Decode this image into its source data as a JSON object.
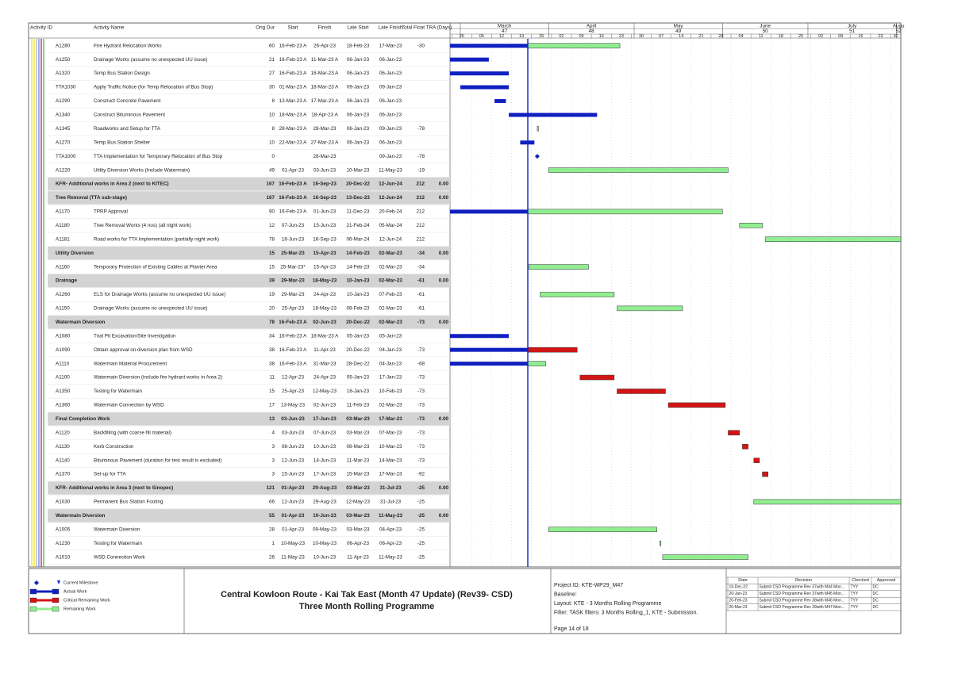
{
  "header": {
    "columns": [
      "Activity ID",
      "Activity Name",
      "Orig Dur",
      "Start",
      "Finish",
      "Late Start",
      "Late Finish",
      "Total Float",
      "TRA (Days)"
    ],
    "months": [
      "March",
      "April",
      "May",
      "June",
      "July",
      "Augu"
    ],
    "weeks": [
      "47",
      "48",
      "49",
      "50",
      "51",
      "52"
    ],
    "days": [
      "26",
      "05",
      "12",
      "19",
      "26",
      "02",
      "09",
      "16",
      "23",
      "30",
      "07",
      "14",
      "21",
      "28",
      "04",
      "11",
      "18",
      "25",
      "02",
      "09",
      "16",
      "23",
      "30"
    ]
  },
  "rows": [
    {
      "id": "A1280",
      "name": "Fire Hydrant Relocation Works",
      "dur": "60",
      "start": "16-Feb-23 A",
      "finish": "26-Apr-23",
      "late_start": "18-Feb-23",
      "late_finish": "17-Mar-23",
      "float": "-30"
    },
    {
      "id": "A1250",
      "name": "Drainage Works (assume no unexpected UU issue)",
      "dur": "21",
      "start": "16-Feb-23 A",
      "finish": "11-Mar-23 A",
      "late_start": "06-Jan-23",
      "late_finish": "06-Jan-23"
    },
    {
      "id": "A1320",
      "name": "Temp Bus Station Design",
      "dur": "27",
      "start": "16-Feb-23 A",
      "finish": "18-Mar-23 A",
      "late_start": "06-Jan-23",
      "late_finish": "06-Jan-23"
    },
    {
      "id": "TTA1030",
      "name": "Apply Traffic Notice (for Temp Relocation of Bus Stop)",
      "dur": "30",
      "start": "01-Mar-23 A",
      "finish": "18-Mar-23 A",
      "late_start": "09-Jan-23",
      "late_finish": "09-Jan-23"
    },
    {
      "id": "A1290",
      "name": "Construct Concrete Pavement",
      "dur": "8",
      "start": "13-Mar-23 A",
      "finish": "17-Mar-23 A",
      "late_start": "06-Jan-23",
      "late_finish": "06-Jan-23"
    },
    {
      "id": "A1340",
      "name": "Construct Bituminous Pavement",
      "dur": "10",
      "start": "18-Mar-23 A",
      "finish": "18-Apr-23 A",
      "late_start": "06-Jan-23",
      "late_finish": "06-Jan-23"
    },
    {
      "id": "A1345",
      "name": "Roadworks and Setup for TTA",
      "dur": "8",
      "start": "28-Mar-23 A",
      "finish": "28-Mar-23",
      "late_start": "06-Jan-23",
      "late_finish": "09-Jan-23",
      "float": "-78"
    },
    {
      "id": "A1270",
      "name": "Temp Bus Station Shelter",
      "dur": "10",
      "start": "22-Mar-23 A",
      "finish": "27-Mar-23 A",
      "late_start": "06-Jan-23",
      "late_finish": "06-Jan-23"
    },
    {
      "id": "TTA1000",
      "name": "TTA Implementation for Temporary Relocation of Bus Stop",
      "dur": "0",
      "finish": "28-Mar-23",
      "late_finish": "09-Jan-23",
      "float": "-78"
    },
    {
      "id": "A1220",
      "name": "Utility Diversion Works (Include Watermain)",
      "dur": "49",
      "start": "01-Apr-23",
      "finish": "03-Jun-23",
      "late_start": "10-Mar-23",
      "late_finish": "11-May-23",
      "float": "-19"
    },
    {
      "group": true,
      "name": "KFR- Additional works in Area 2 (next to KITEC)",
      "dur": "167",
      "start": "16-Feb-23 A",
      "finish": "16-Sep-23",
      "late_start": "20-Dec-22",
      "late_finish": "12-Jun-24",
      "float": "212",
      "tra": "0.00"
    },
    {
      "group": true,
      "name": "Tree Removal (TTA sub-stage)",
      "dur": "167",
      "start": "16-Feb-23 A",
      "finish": "16-Sep-23",
      "late_start": "13-Dec-23",
      "late_finish": "12-Jun-24",
      "float": "212",
      "tra": "0.00"
    },
    {
      "id": "A1170",
      "name": "TPRP Approval",
      "dur": "90",
      "start": "16-Feb-23 A",
      "finish": "01-Jun-23",
      "late_start": "11-Dec-23",
      "late_finish": "20-Feb-24",
      "float": "212"
    },
    {
      "id": "A1180",
      "name": "Tree Removal Works (4 nos) (all night work)",
      "dur": "12",
      "start": "07-Jun-23",
      "finish": "15-Jun-23",
      "late_start": "21-Feb-24",
      "late_finish": "05-Mar-24",
      "float": "212"
    },
    {
      "id": "A1181",
      "name": "Road works for TTA Implementation (partially night work)",
      "dur": "78",
      "start": "16-Jun-23",
      "finish": "16-Sep-23",
      "late_start": "06-Mar-24",
      "late_finish": "12-Jun-24",
      "float": "212"
    },
    {
      "group": true,
      "name": "Utility Diversion",
      "dur": "15",
      "start": "25-Mar-23",
      "finish": "15-Apr-23",
      "late_start": "14-Feb-23",
      "late_finish": "02-Mar-23",
      "float": "-34",
      "tra": "0.00"
    },
    {
      "id": "A1160",
      "name": "Temporary Protection of Existing Cables at Planter Area",
      "dur": "15",
      "start": "25-Mar-23*",
      "finish": "15-Apr-23",
      "late_start": "14-Feb-23",
      "late_finish": "02-Mar-23",
      "float": "-34"
    },
    {
      "group": true,
      "name": "Drainage",
      "dur": "39",
      "start": "29-Mar-23",
      "finish": "18-May-23",
      "late_start": "10-Jan-23",
      "late_finish": "02-Mar-23",
      "float": "-61",
      "tra": "0.00"
    },
    {
      "id": "A1260",
      "name": "ELS for Drainage Works (assume no unexpected UU issue)",
      "dur": "19",
      "start": "29-Mar-23",
      "finish": "24-Apr-23",
      "late_start": "10-Jan-23",
      "late_finish": "07-Feb-23",
      "float": "-61"
    },
    {
      "id": "A1150",
      "name": "Drainage Works (assume no unexpected UU issue)",
      "dur": "20",
      "start": "25-Apr-23",
      "finish": "18-May-23",
      "late_start": "08-Feb-23",
      "late_finish": "02-Mar-23",
      "float": "-61"
    },
    {
      "group": true,
      "name": "Watermain Diversion",
      "dur": "78",
      "start": "16-Feb-23 A",
      "finish": "02-Jun-23",
      "late_start": "20-Dec-22",
      "late_finish": "02-Mar-23",
      "float": "-73",
      "tra": "0.00"
    },
    {
      "id": "A1080",
      "name": "Trial Pit Excavation/Site Investigation",
      "dur": "34",
      "start": "16-Feb-23 A",
      "finish": "18-Mar-23 A",
      "late_start": "05-Jan-23",
      "late_finish": "05-Jan-23"
    },
    {
      "id": "A1090",
      "name": "Obtain approval on diversion plan from WSD",
      "dur": "38",
      "start": "16-Feb-23 A",
      "finish": "11-Apr-23",
      "late_start": "20-Dec-22",
      "late_finish": "04-Jan-23",
      "float": "-73",
      "color": "#d41414"
    },
    {
      "id": "A1110",
      "name": "Watermain Material Procurement",
      "dur": "38",
      "start": "16-Feb-23 A",
      "finish": "31-Mar-23",
      "late_start": "28-Dec-22",
      "late_finish": "04-Jan-23",
      "float": "-68"
    },
    {
      "id": "A1100",
      "name": "Watermain Diversion (include fire hydrant works in Area 2)",
      "dur": "11",
      "start": "12-Apr-23",
      "finish": "24-Apr-23",
      "late_start": "05-Jan-23",
      "late_finish": "17-Jan-23",
      "float": "-73",
      "color": "#d41414"
    },
    {
      "id": "A1350",
      "name": "Testing for Watermain",
      "dur": "15",
      "start": "25-Apr-23",
      "finish": "12-May-23",
      "late_start": "18-Jan-23",
      "late_finish": "10-Feb-23",
      "float": "-73",
      "color": "#d41414"
    },
    {
      "id": "A1360",
      "name": "Watermain Connection by WSD",
      "dur": "17",
      "start": "13-May-23",
      "finish": "02-Jun-23",
      "late_start": "11-Feb-23",
      "late_finish": "02-Mar-23",
      "float": "-73",
      "color": "#d41414"
    },
    {
      "group": true,
      "name": "Final Completion Work",
      "dur": "13",
      "start": "03-Jun-23",
      "finish": "17-Jun-23",
      "late_start": "03-Mar-23",
      "late_finish": "17-Mar-23",
      "float": "-73",
      "tra": "0.00"
    },
    {
      "id": "A1120",
      "name": "Backfilling (with coarse fill material)",
      "dur": "4",
      "start": "03-Jun-23",
      "finish": "07-Jun-23",
      "late_start": "03-Mar-23",
      "late_finish": "07-Mar-23",
      "float": "-73",
      "color": "#d41414"
    },
    {
      "id": "A1130",
      "name": "Kerb Construction",
      "dur": "3",
      "start": "08-Jun-23",
      "finish": "10-Jun-23",
      "late_start": "08-Mar-23",
      "late_finish": "10-Mar-23",
      "float": "-73",
      "color": "#d41414"
    },
    {
      "id": "A1140",
      "name": "Bituminous Pavement (duration for test result is excluded)",
      "dur": "3",
      "start": "12-Jun-23",
      "finish": "14-Jun-23",
      "late_start": "11-Mar-23",
      "late_finish": "14-Mar-23",
      "float": "-73",
      "color": "#d41414"
    },
    {
      "id": "A1370",
      "name": "Set-up for TTA",
      "dur": "3",
      "start": "15-Jun-23",
      "finish": "17-Jun-23",
      "late_start": "15-Mar-23",
      "late_finish": "17-Mar-23",
      "float": "-92",
      "color": "#d41414"
    },
    {
      "group": true,
      "name": "KFR- Additional works in Area 3 (next to Sinopec)",
      "dur": "121",
      "start": "01-Apr-23",
      "finish": "29-Aug-23",
      "late_start": "03-Mar-23",
      "late_finish": "31-Jul-23",
      "float": "-25",
      "tra": "0.00"
    },
    {
      "id": "A1030",
      "name": "Permanent Bus Station Footing",
      "dur": "66",
      "start": "12-Jun-23",
      "finish": "29-Aug-23",
      "late_start": "12-May-23",
      "late_finish": "31-Jul-23",
      "float": "-25"
    },
    {
      "group": true,
      "name": "Watermain Diversion",
      "dur": "55",
      "start": "01-Apr-23",
      "finish": "10-Jun-23",
      "late_start": "03-Mar-23",
      "late_finish": "11-May-23",
      "float": "-25",
      "tra": "0.00"
    },
    {
      "id": "A1005",
      "name": "Watermain Diversion",
      "dur": "28",
      "start": "01-Apr-23",
      "finish": "09-May-23",
      "late_start": "03-Mar-23",
      "late_finish": "04-Apr-23",
      "float": "-25"
    },
    {
      "id": "A1230",
      "name": "Testing for Watermain",
      "dur": "1",
      "start": "10-May-23",
      "finish": "10-May-23",
      "late_start": "06-Apr-23",
      "late_finish": "06-Apr-23",
      "float": "-25"
    },
    {
      "id": "A1010",
      "name": "WSD Connection Work",
      "dur": "26",
      "start": "11-May-23",
      "finish": "10-Jun-23",
      "late_start": "11-Apr-23",
      "late_finish": "11-May-23",
      "float": "-25"
    }
  ],
  "legend": [
    "Current Milestone",
    "Actual Work",
    "Critical Remaining Work",
    "Remaining Work"
  ],
  "title": [
    "Central Kowloon Route - Kai Tak East (Month 47 Update) (Rev39- CSD)",
    "Three Month Rolling Programme"
  ],
  "project": [
    "Project ID: KTE-WP29_M47",
    "Baseline:",
    "Layout: KTE - 3 Months Rolling Programme",
    "Filter: TASK filters: 3 Months Rolling_1, KTE - Submission."
  ],
  "page": "Page 14 of 18",
  "revisions": {
    "columns": [
      "Date",
      "Revision",
      "Checked",
      "Approved"
    ],
    "rows": [
      [
        "19-Dec-22",
        "Submit CSD Programme Rev 37with M44 Mon...",
        "TYY",
        "DC"
      ],
      [
        "20-Jan-23",
        "Submit CSD Programme Rev 37with M45 Mon...",
        "TYY",
        "DC"
      ],
      [
        "20-Feb-23",
        "Submit CSD Programme Rev 38with M46 Mon...",
        "TYY",
        "DC"
      ],
      [
        "20-Mar-23",
        "Submit CSD Programme Rev 39with M47 Mon...",
        "TYY",
        "DC"
      ]
    ]
  }
}
